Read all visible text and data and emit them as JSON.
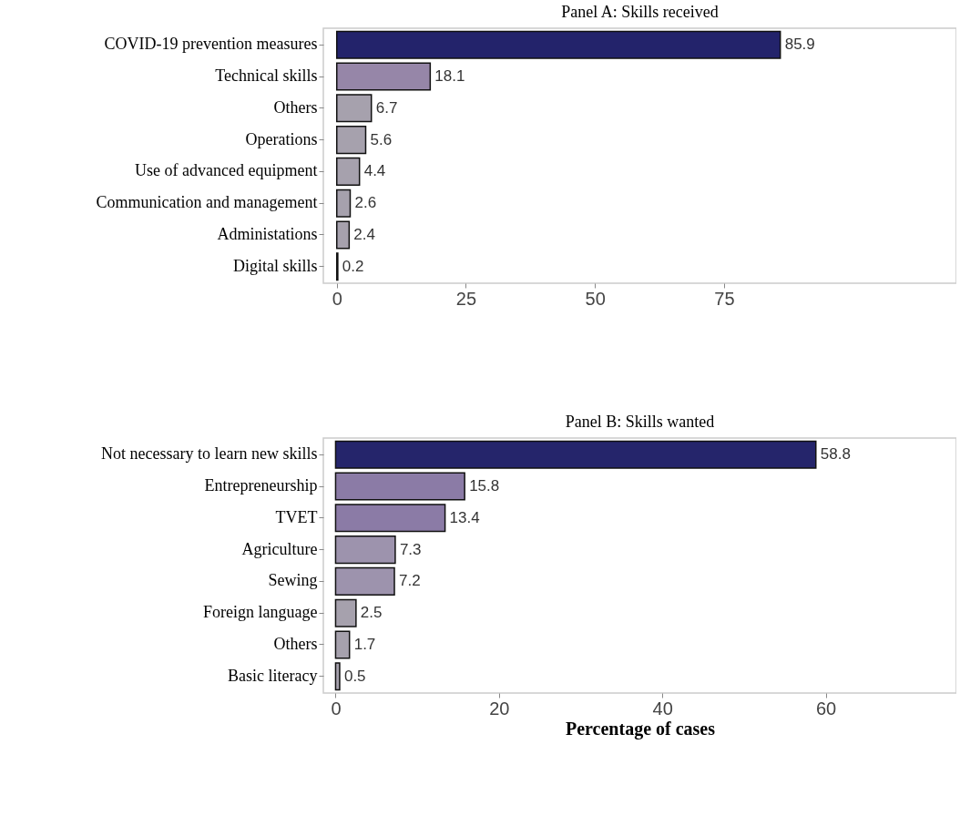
{
  "chart_data": [
    {
      "type": "bar",
      "orientation": "horizontal",
      "title": "Panel A: Skills received",
      "categories": [
        "COVID-19 prevention measures",
        "Technical skills",
        "Others",
        "Operations",
        "Use of advanced equipment",
        "Communication and management",
        "Administations",
        "Digital skills"
      ],
      "values": [
        85.9,
        18.1,
        6.7,
        5.6,
        4.4,
        2.6,
        2.4,
        0.2
      ],
      "colors": [
        "#23236b",
        "#9686a8",
        "#a6a1ad",
        "#a6a1ad",
        "#a6a1ad",
        "#a6a1ad",
        "#a6a1ad",
        "#a6a1ad"
      ],
      "xlim": [
        -2.6,
        120
      ],
      "xticks": [
        0,
        25,
        50,
        75
      ],
      "data_labels": true,
      "grid": false,
      "legend": false
    },
    {
      "type": "bar",
      "orientation": "horizontal",
      "title": "Panel B: Skills wanted",
      "xlabel": "Percentage of cases",
      "categories": [
        "Not necessary to learn new skills",
        "Entrepreneurship",
        "TVET",
        "Agriculture",
        "Sewing",
        "Foreign language",
        "Others",
        "Basic literacy"
      ],
      "values": [
        58.8,
        15.8,
        13.4,
        7.3,
        7.2,
        2.5,
        1.7,
        0.5
      ],
      "colors": [
        "#25256b",
        "#8b7ba6",
        "#8b7ba6",
        "#9d93ad",
        "#9d93ad",
        "#a6a1ad",
        "#a6a1ad",
        "#a6a1ad"
      ],
      "xlim": [
        -1.5,
        76
      ],
      "xticks": [
        0,
        20,
        40,
        60
      ],
      "data_labels": true,
      "grid": false,
      "legend": false
    }
  ]
}
